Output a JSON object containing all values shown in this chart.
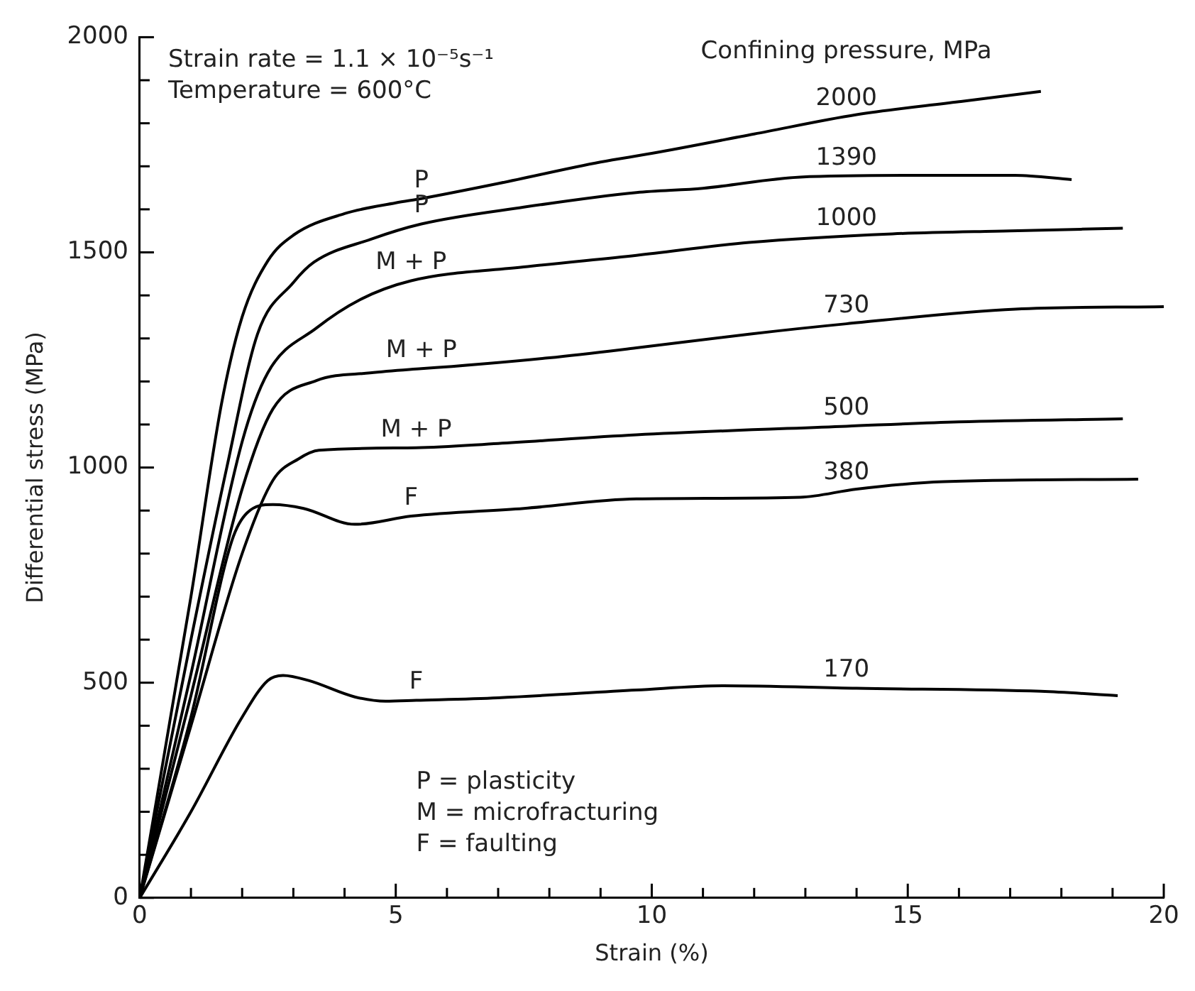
{
  "chart_data": {
    "type": "line",
    "xlabel": "Strain (%)",
    "ylabel": "Differential stress (MPa)",
    "legend_title": "Confining pressure, MPa",
    "xlim": [
      0,
      20
    ],
    "ylim": [
      0,
      2000
    ],
    "xticks": [
      0,
      {
        "value": 1,
        "label": null
      },
      {
        "value": 2,
        "label": null
      },
      {
        "value": 3,
        "label": null
      },
      {
        "value": 4,
        "label": null
      },
      5,
      {
        "value": 6,
        "label": null
      },
      {
        "value": 7,
        "label": null
      },
      {
        "value": 8,
        "label": null
      },
      {
        "value": 9,
        "label": null
      },
      10,
      {
        "value": 11,
        "label": null
      },
      {
        "value": 12,
        "label": null
      },
      {
        "value": 13,
        "label": null
      },
      {
        "value": 14,
        "label": null
      },
      15,
      {
        "value": 16,
        "label": null
      },
      {
        "value": 17,
        "label": null
      },
      {
        "value": 18,
        "label": null
      },
      {
        "value": 19,
        "label": null
      },
      20
    ],
    "yticks": [
      0,
      {
        "value": 100,
        "label": null
      },
      {
        "value": 200,
        "label": null
      },
      {
        "value": 300,
        "label": null
      },
      {
        "value": 400,
        "label": null
      },
      500,
      {
        "value": 600,
        "label": null
      },
      {
        "value": 700,
        "label": null
      },
      {
        "value": 800,
        "label": null
      },
      {
        "value": 900,
        "label": null
      },
      1000,
      {
        "value": 1100,
        "label": null
      },
      {
        "value": 1200,
        "label": null
      },
      {
        "value": 1300,
        "label": null
      },
      {
        "value": 1400,
        "label": null
      },
      1500,
      {
        "value": 1600,
        "label": null
      },
      {
        "value": 1700,
        "label": null
      },
      {
        "value": 1800,
        "label": null
      },
      {
        "value": 1900,
        "label": null
      },
      2000
    ],
    "grid": false,
    "legend": false,
    "marker": "none",
    "line_style": "solid",
    "series": [
      {
        "name": "2000",
        "color": "#000000",
        "x": [
          0,
          1,
          1.6,
          2,
          2.5,
          3,
          4,
          5,
          5.5,
          7,
          9,
          10,
          12,
          14,
          16,
          17.6
        ],
        "values": [
          0,
          700,
          1150,
          1350,
          1480,
          1540,
          1590,
          1615,
          1625,
          1660,
          1710,
          1730,
          1775,
          1820,
          1850,
          1874
        ]
      },
      {
        "name": "1390",
        "color": "#000000",
        "x": [
          0,
          1,
          1.7,
          2.3,
          3,
          3.4,
          4.5,
          5.5,
          7.5,
          9.7,
          11,
          12.9,
          15,
          17.1,
          18.2
        ],
        "values": [
          0,
          600,
          1000,
          1310,
          1430,
          1477,
          1530,
          1566,
          1605,
          1639,
          1649,
          1675,
          1679,
          1679,
          1669
        ]
      },
      {
        "name": "1000",
        "color": "#000000",
        "x": [
          0,
          1,
          2,
          2.5,
          3.45,
          4.3,
          5.3,
          7.5,
          9.7,
          11.9,
          14.7,
          17,
          19.2
        ],
        "values": [
          0,
          520,
          1060,
          1220,
          1324,
          1390,
          1434,
          1466,
          1493,
          1523,
          1543,
          1550,
          1556
        ]
      },
      {
        "name": "730",
        "color": "#000000",
        "x": [
          0,
          1,
          2,
          2.6,
          3.45,
          4.5,
          5.5,
          6.1,
          8,
          9.7,
          11.9,
          13.8,
          17.1,
          20
        ],
        "values": [
          0,
          470,
          950,
          1136,
          1202,
          1220,
          1230,
          1235,
          1255,
          1278,
          1310,
          1334,
          1368,
          1374
        ]
      },
      {
        "name": "500",
        "color": "#000000",
        "x": [
          0,
          1,
          2,
          2.6,
          3.1,
          3.5,
          5.4,
          7,
          9.7,
          13.8,
          16,
          19.2
        ],
        "values": [
          0,
          400,
          800,
          970,
          1020,
          1040,
          1046,
          1056,
          1076,
          1096,
          1106,
          1113
        ]
      },
      {
        "name": "380",
        "color": "#000000",
        "x": [
          0,
          1,
          1.8,
          2.1,
          2.6,
          3.2,
          4.2,
          5.3,
          7.5,
          9.7,
          12.9,
          14,
          15.7,
          19.5
        ],
        "values": [
          0,
          420,
          830,
          895,
          914,
          905,
          868,
          887,
          905,
          927,
          931,
          950,
          967,
          973
        ]
      },
      {
        "name": "170",
        "color": "#000000",
        "x": [
          0,
          1,
          2,
          2.5,
          2.8,
          3.3,
          4.2,
          4.8,
          5.4,
          7,
          9.7,
          11.4,
          14,
          17.6,
          19.1
        ],
        "values": [
          0,
          200,
          420,
          505,
          517,
          505,
          467,
          457,
          459,
          465,
          483,
          493,
          487,
          480,
          470
        ]
      }
    ],
    "annotations": [
      "Strain rate = 1.1 × 10⁻⁵s⁻¹\nTemperature = 600°C",
      "P = plasticity\nM = microfracturing\nF = faulting",
      {
        "text": "P",
        "x": 5.5,
        "y": 1625
      },
      {
        "text": "P",
        "x": 5.5,
        "y": 1566
      },
      {
        "text": "M + P",
        "x": 5.3,
        "y": 1434
      },
      {
        "text": "M + P",
        "x": 5.5,
        "y": 1230
      },
      {
        "text": "M + P",
        "x": 5.4,
        "y": 1046
      },
      {
        "text": "F",
        "x": 5.3,
        "y": 887
      },
      {
        "text": "F",
        "x": 5.4,
        "y": 459
      }
    ]
  }
}
